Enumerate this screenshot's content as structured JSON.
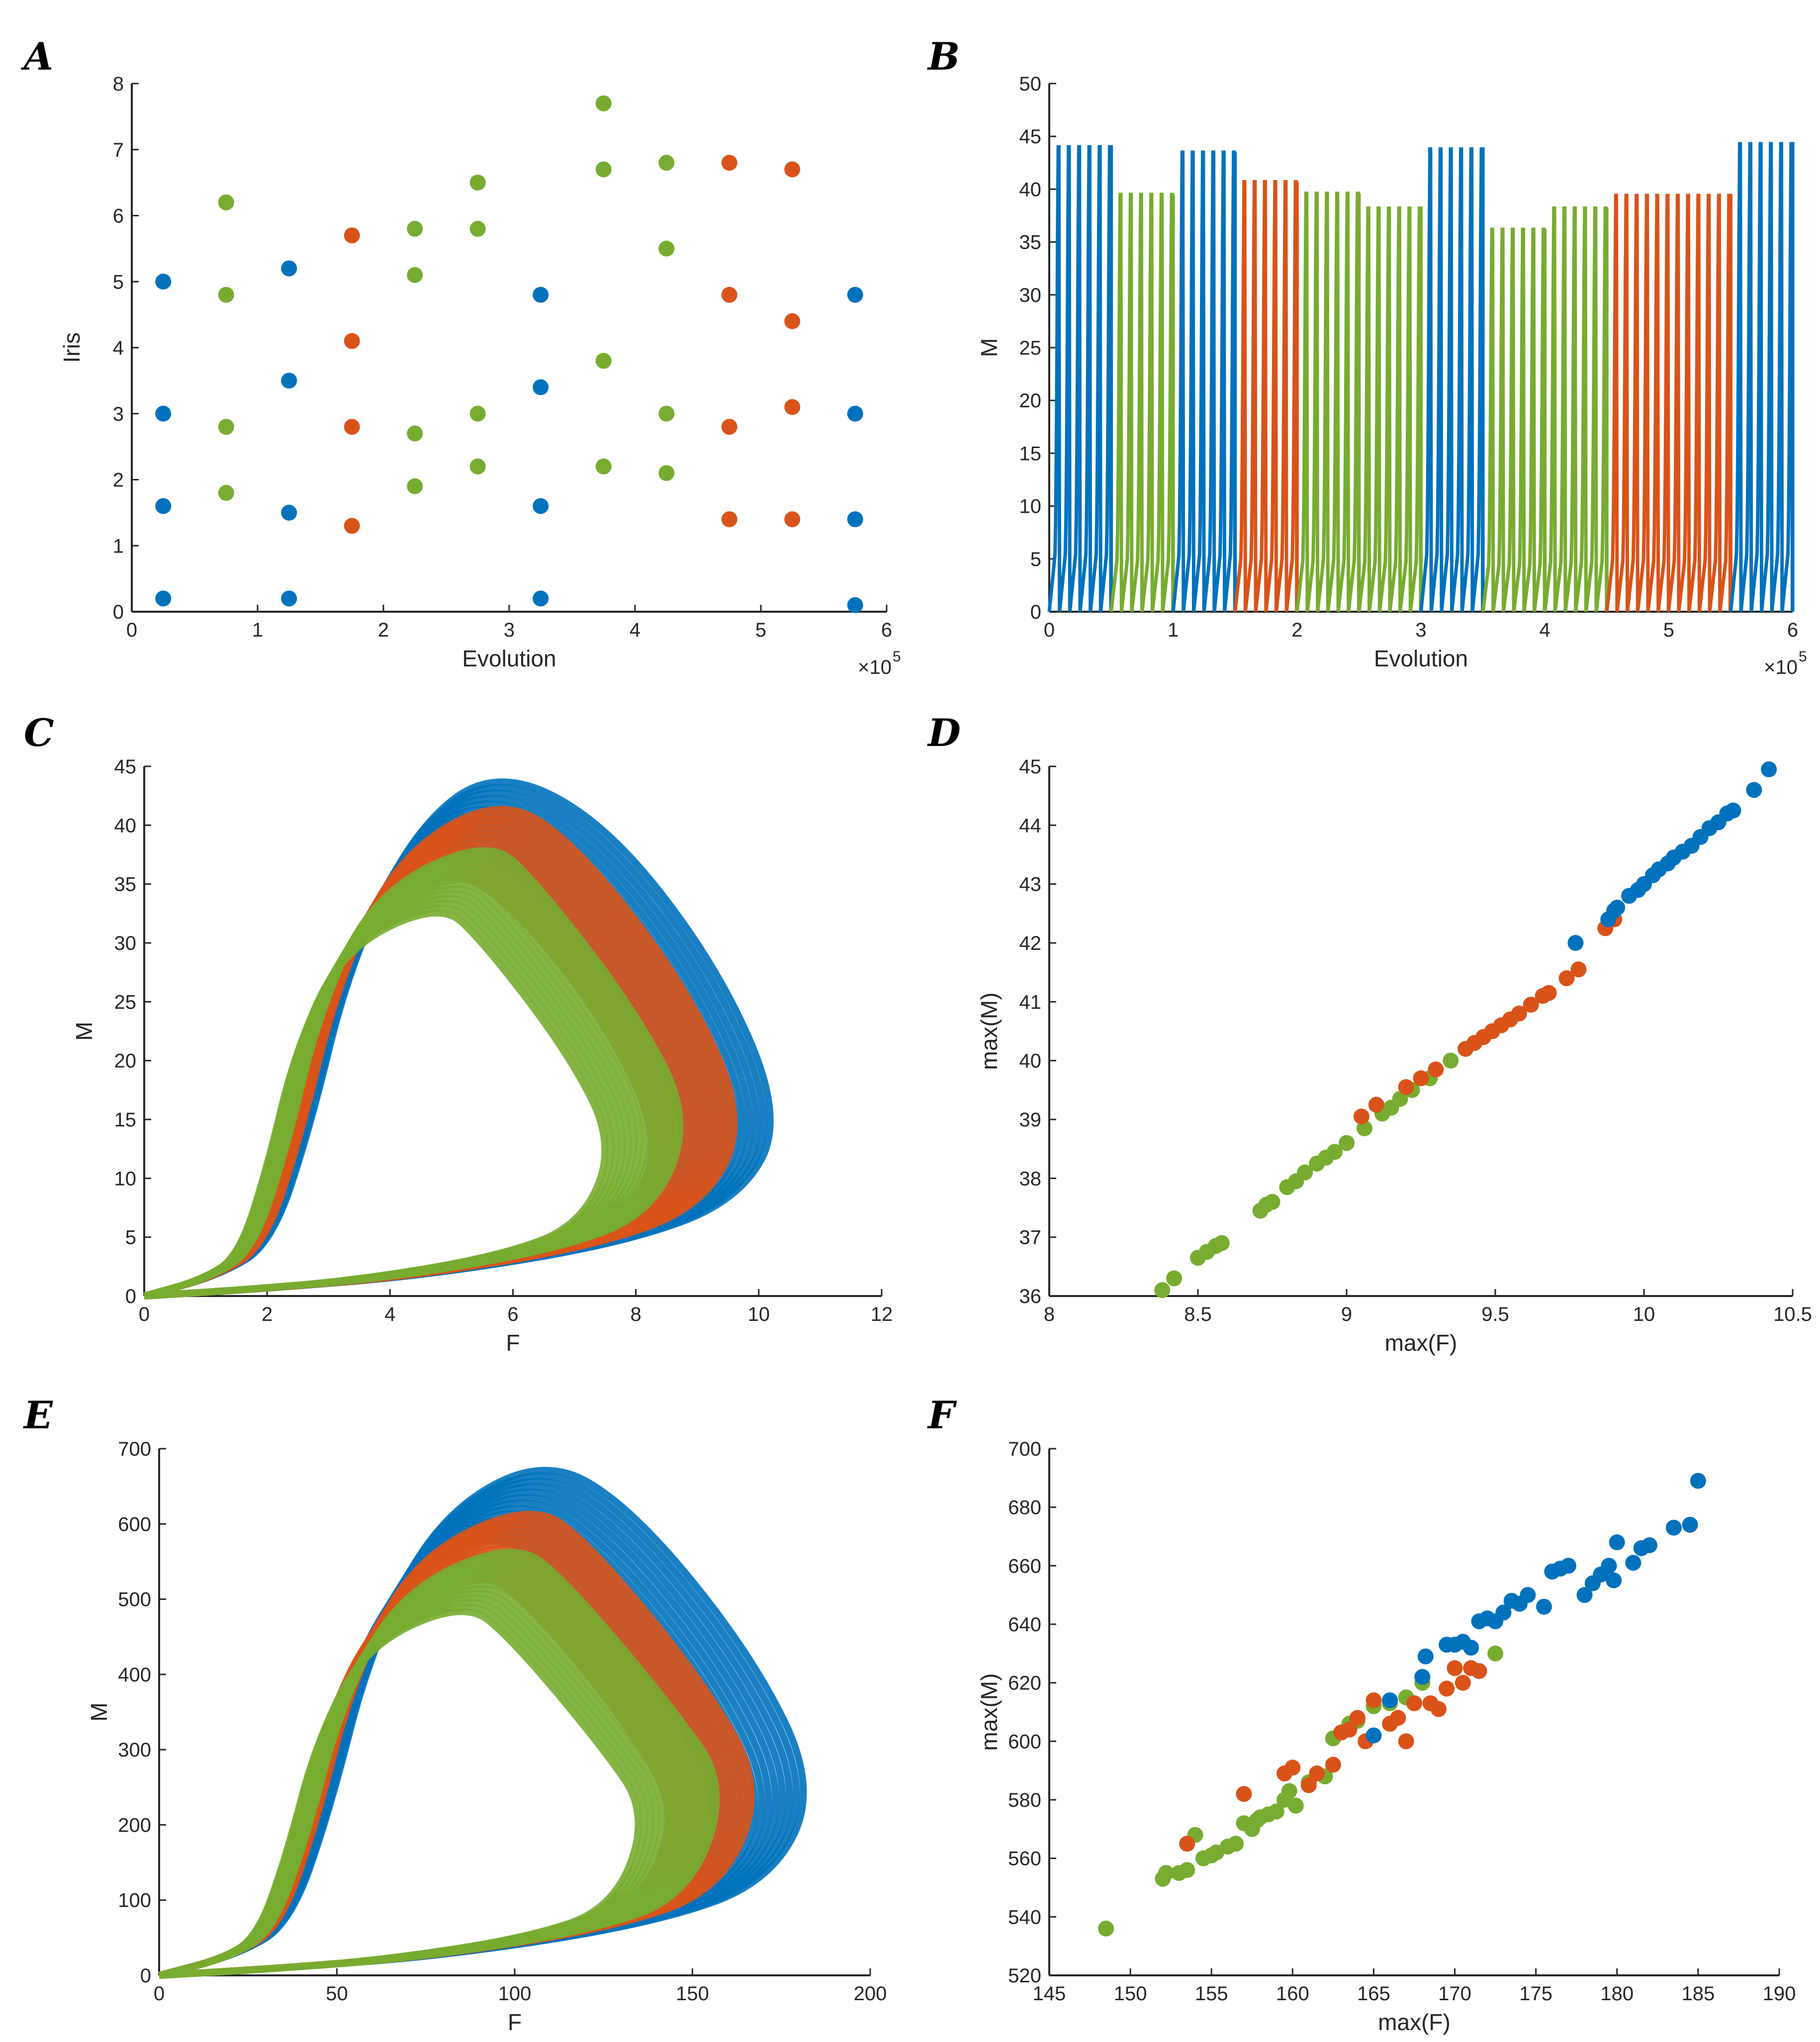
{
  "colors": {
    "blue": "#0072BD",
    "orange": "#D95319",
    "green": "#77AC30"
  },
  "panels": {
    "A": {
      "label": "A"
    },
    "B": {
      "label": "B"
    },
    "C": {
      "label": "C"
    },
    "D": {
      "label": "D"
    },
    "E": {
      "label": "E"
    },
    "F": {
      "label": "F"
    }
  },
  "chart_data": [
    {
      "id": "A",
      "type": "scatter",
      "xlabel": "Evolution",
      "ylabel": "Iris",
      "xlim": [
        0,
        6
      ],
      "ylim": [
        0,
        8
      ],
      "xticks": [
        0,
        1,
        2,
        3,
        4,
        5,
        6
      ],
      "yticks": [
        0,
        1,
        2,
        3,
        4,
        5,
        6,
        7,
        8
      ],
      "xmultiplier": "×10",
      "xmultiplier_exp": "5",
      "series": [
        {
          "name": "blue",
          "color": "#0072BD",
          "points": [
            [
              0.25,
              5.0
            ],
            [
              0.25,
              3.0
            ],
            [
              0.25,
              1.6
            ],
            [
              0.25,
              0.2
            ],
            [
              1.25,
              5.2
            ],
            [
              1.25,
              3.5
            ],
            [
              1.25,
              1.5
            ],
            [
              1.25,
              0.2
            ],
            [
              3.25,
              4.8
            ],
            [
              3.25,
              3.4
            ],
            [
              3.25,
              1.6
            ],
            [
              3.25,
              0.2
            ],
            [
              5.75,
              4.8
            ],
            [
              5.75,
              3.0
            ],
            [
              5.75,
              1.4
            ],
            [
              5.75,
              0.1
            ]
          ]
        },
        {
          "name": "orange",
          "color": "#D95319",
          "points": [
            [
              1.75,
              5.7
            ],
            [
              1.75,
              4.1
            ],
            [
              1.75,
              2.8
            ],
            [
              1.75,
              1.3
            ],
            [
              4.75,
              6.8
            ],
            [
              4.75,
              4.8
            ],
            [
              4.75,
              2.8
            ],
            [
              4.75,
              1.4
            ],
            [
              5.25,
              6.7
            ],
            [
              5.25,
              4.4
            ],
            [
              5.25,
              3.1
            ],
            [
              5.25,
              1.4
            ]
          ]
        },
        {
          "name": "green",
          "color": "#77AC30",
          "points": [
            [
              0.75,
              6.2
            ],
            [
              0.75,
              4.8
            ],
            [
              0.75,
              2.8
            ],
            [
              0.75,
              1.8
            ],
            [
              2.25,
              5.8
            ],
            [
              2.25,
              5.1
            ],
            [
              2.25,
              2.7
            ],
            [
              2.25,
              1.9
            ],
            [
              2.75,
              6.5
            ],
            [
              2.75,
              5.8
            ],
            [
              2.75,
              3.0
            ],
            [
              2.75,
              2.2
            ],
            [
              3.75,
              7.7
            ],
            [
              3.75,
              6.7
            ],
            [
              3.75,
              3.8
            ],
            [
              3.75,
              2.2
            ],
            [
              4.25,
              6.8
            ],
            [
              4.25,
              5.5
            ],
            [
              4.25,
              3.0
            ],
            [
              4.25,
              2.1
            ]
          ]
        }
      ]
    },
    {
      "id": "B",
      "type": "line",
      "xlabel": "Evolution",
      "ylabel": "M",
      "xlim": [
        0,
        6
      ],
      "ylim": [
        0,
        50
      ],
      "xticks": [
        0,
        1,
        2,
        3,
        4,
        5,
        6
      ],
      "yticks": [
        0,
        5,
        10,
        15,
        20,
        25,
        30,
        35,
        40,
        45,
        50
      ],
      "xmultiplier": "×10",
      "xmultiplier_exp": "5",
      "segments": [
        {
          "color": "#0072BD",
          "x_start": 0.0,
          "x_end": 0.5,
          "peak": 44
        },
        {
          "color": "#77AC30",
          "x_start": 0.5,
          "x_end": 1.0,
          "peak": 39.5
        },
        {
          "color": "#0072BD",
          "x_start": 1.0,
          "x_end": 1.5,
          "peak": 43.5
        },
        {
          "color": "#D95319",
          "x_start": 1.5,
          "x_end": 2.0,
          "peak": 40.7
        },
        {
          "color": "#77AC30",
          "x_start": 2.0,
          "x_end": 2.5,
          "peak": 39.6
        },
        {
          "color": "#77AC30",
          "x_start": 2.5,
          "x_end": 3.0,
          "peak": 38.2
        },
        {
          "color": "#0072BD",
          "x_start": 3.0,
          "x_end": 3.5,
          "peak": 43.8
        },
        {
          "color": "#77AC30",
          "x_start": 3.5,
          "x_end": 4.0,
          "peak": 36.2
        },
        {
          "color": "#77AC30",
          "x_start": 4.0,
          "x_end": 4.5,
          "peak": 38.2
        },
        {
          "color": "#D95319",
          "x_start": 4.5,
          "x_end": 5.5,
          "peak": 39.4
        },
        {
          "color": "#0072BD",
          "x_start": 5.5,
          "x_end": 6.0,
          "peak": 44.3
        }
      ]
    },
    {
      "id": "C",
      "type": "line",
      "xlabel": "F",
      "ylabel": "M",
      "xlim": [
        0,
        12
      ],
      "ylim": [
        0,
        45
      ],
      "xticks": [
        0,
        2,
        4,
        6,
        8,
        10,
        12
      ],
      "yticks": [
        0,
        5,
        10,
        15,
        20,
        25,
        30,
        35,
        40,
        45
      ],
      "series": [
        {
          "name": "blue",
          "color": "#0072BD",
          "max_F": 10.4,
          "max_M": 44.9,
          "peak_F": 5.7,
          "turn_M": 15
        },
        {
          "name": "orange",
          "color": "#D95319",
          "max_F": 9.8,
          "max_M": 42.5,
          "peak_F": 5.8,
          "turn_M": 15
        },
        {
          "name": "green",
          "color": "#77AC30",
          "max_F": 8.9,
          "max_M": 38.9,
          "peak_F": 5.6,
          "turn_M": 15
        }
      ]
    },
    {
      "id": "D",
      "type": "scatter",
      "xlabel": "max(F)",
      "ylabel": "max(M)",
      "xlim": [
        8,
        10.5
      ],
      "ylim": [
        36,
        45
      ],
      "xticks": [
        8,
        8.5,
        9,
        9.5,
        10,
        10.5
      ],
      "yticks": [
        36,
        37,
        38,
        39,
        40,
        41,
        42,
        43,
        44,
        45
      ],
      "series": [
        {
          "name": "green",
          "color": "#77AC30",
          "points": [
            [
              8.38,
              36.1
            ],
            [
              8.42,
              36.3
            ],
            [
              8.5,
              36.65
            ],
            [
              8.53,
              36.75
            ],
            [
              8.56,
              36.85
            ],
            [
              8.58,
              36.9
            ],
            [
              8.71,
              37.45
            ],
            [
              8.73,
              37.55
            ],
            [
              8.75,
              37.6
            ],
            [
              8.8,
              37.85
            ],
            [
              8.83,
              37.95
            ],
            [
              8.86,
              38.1
            ],
            [
              8.9,
              38.25
            ],
            [
              8.93,
              38.35
            ],
            [
              8.96,
              38.45
            ],
            [
              9.0,
              38.6
            ],
            [
              9.06,
              38.85
            ],
            [
              9.12,
              39.1
            ],
            [
              9.15,
              39.2
            ],
            [
              9.18,
              39.35
            ],
            [
              9.22,
              39.5
            ],
            [
              9.28,
              39.7
            ],
            [
              9.35,
              40.0
            ]
          ]
        },
        {
          "name": "orange",
          "color": "#D95319",
          "points": [
            [
              9.05,
              39.05
            ],
            [
              9.1,
              39.25
            ],
            [
              9.2,
              39.55
            ],
            [
              9.25,
              39.7
            ],
            [
              9.3,
              39.85
            ],
            [
              9.4,
              40.2
            ],
            [
              9.43,
              40.3
            ],
            [
              9.46,
              40.4
            ],
            [
              9.49,
              40.5
            ],
            [
              9.52,
              40.6
            ],
            [
              9.55,
              40.7
            ],
            [
              9.58,
              40.8
            ],
            [
              9.62,
              40.95
            ],
            [
              9.66,
              41.1
            ],
            [
              9.68,
              41.15
            ],
            [
              9.74,
              41.4
            ],
            [
              9.78,
              41.55
            ],
            [
              9.87,
              42.25
            ],
            [
              9.9,
              42.4
            ]
          ]
        },
        {
          "name": "blue",
          "color": "#0072BD",
          "points": [
            [
              9.77,
              42.0
            ],
            [
              9.88,
              42.4
            ],
            [
              9.9,
              42.55
            ],
            [
              9.91,
              42.6
            ],
            [
              9.95,
              42.8
            ],
            [
              9.98,
              42.9
            ],
            [
              10.0,
              43.0
            ],
            [
              10.03,
              43.15
            ],
            [
              10.05,
              43.25
            ],
            [
              10.08,
              43.35
            ],
            [
              10.1,
              43.45
            ],
            [
              10.13,
              43.55
            ],
            [
              10.16,
              43.65
            ],
            [
              10.19,
              43.8
            ],
            [
              10.22,
              43.95
            ],
            [
              10.25,
              44.05
            ],
            [
              10.28,
              44.2
            ],
            [
              10.3,
              44.25
            ],
            [
              10.37,
              44.6
            ],
            [
              10.42,
              44.95
            ]
          ]
        }
      ]
    },
    {
      "id": "E",
      "type": "line",
      "xlabel": "F",
      "ylabel": "M",
      "xlim": [
        0,
        200
      ],
      "ylim": [
        0,
        700
      ],
      "xticks": [
        0,
        50,
        100,
        150,
        200
      ],
      "yticks": [
        0,
        100,
        200,
        300,
        400,
        500,
        600,
        700
      ],
      "series": [
        {
          "name": "blue",
          "color": "#0072BD",
          "max_F": 185,
          "max_M": 690,
          "peak_F": 108,
          "turn_M": 250
        },
        {
          "name": "orange",
          "color": "#D95319",
          "max_F": 170,
          "max_M": 630,
          "peak_F": 105,
          "turn_M": 250
        },
        {
          "name": "green",
          "color": "#77AC30",
          "max_F": 160,
          "max_M": 578,
          "peak_F": 100,
          "turn_M": 250
        }
      ]
    },
    {
      "id": "F",
      "type": "scatter",
      "xlabel": "max(F)",
      "ylabel": "max(M)",
      "xlim": [
        145,
        190
      ],
      "ylim": [
        520,
        700
      ],
      "xticks": [
        145,
        150,
        155,
        160,
        165,
        170,
        175,
        180,
        185,
        190
      ],
      "yticks": [
        520,
        540,
        560,
        580,
        600,
        620,
        640,
        660,
        680,
        700
      ],
      "series": [
        {
          "name": "green",
          "color": "#77AC30",
          "points": [
            [
              148.5,
              536
            ],
            [
              152,
              553
            ],
            [
              152.2,
              555
            ],
            [
              153,
              555
            ],
            [
              153.5,
              556
            ],
            [
              154,
              568
            ],
            [
              154.5,
              560
            ],
            [
              155,
              561
            ],
            [
              155.3,
              562
            ],
            [
              156,
              564
            ],
            [
              156.5,
              565
            ],
            [
              157,
              572
            ],
            [
              157.5,
              570
            ],
            [
              157.8,
              573
            ],
            [
              158,
              574
            ],
            [
              158.5,
              575
            ],
            [
              159,
              576
            ],
            [
              159.5,
              580
            ],
            [
              159.8,
              583
            ],
            [
              160.2,
              578
            ],
            [
              161,
              586
            ],
            [
              162,
              588
            ],
            [
              162.5,
              601
            ],
            [
              163.5,
              606
            ],
            [
              164,
              607
            ],
            [
              165,
              612
            ],
            [
              166,
              613
            ],
            [
              167,
              615
            ],
            [
              168,
              620
            ],
            [
              172.5,
              630
            ]
          ]
        },
        {
          "name": "orange",
          "color": "#D95319",
          "points": [
            [
              153.5,
              565
            ],
            [
              157,
              582
            ],
            [
              159.5,
              589
            ],
            [
              160,
              591
            ],
            [
              161,
              585
            ],
            [
              161.5,
              589
            ],
            [
              162.5,
              592
            ],
            [
              163,
              603
            ],
            [
              163.5,
              604
            ],
            [
              164,
              608
            ],
            [
              164.5,
              600
            ],
            [
              165,
              614
            ],
            [
              166,
              606
            ],
            [
              166.5,
              608
            ],
            [
              167,
              600
            ],
            [
              167.5,
              613
            ],
            [
              168.5,
              613
            ],
            [
              169,
              611
            ],
            [
              169.5,
              618
            ],
            [
              170,
              625
            ],
            [
              170.5,
              620
            ],
            [
              171,
              625
            ],
            [
              171.5,
              624
            ]
          ]
        },
        {
          "name": "blue",
          "color": "#0072BD",
          "points": [
            [
              165,
              602
            ],
            [
              166,
              614
            ],
            [
              168,
              622
            ],
            [
              168.2,
              629
            ],
            [
              169.5,
              633
            ],
            [
              170,
              633
            ],
            [
              170.5,
              634
            ],
            [
              171,
              632
            ],
            [
              171.5,
              641
            ],
            [
              172,
              642
            ],
            [
              172.5,
              641
            ],
            [
              173,
              644
            ],
            [
              173.5,
              648
            ],
            [
              174,
              647
            ],
            [
              174.5,
              650
            ],
            [
              175.5,
              646
            ],
            [
              176,
              658
            ],
            [
              176.5,
              659
            ],
            [
              177,
              660
            ],
            [
              178,
              650
            ],
            [
              178.5,
              654
            ],
            [
              179,
              657
            ],
            [
              179.5,
              660
            ],
            [
              179.8,
              655
            ],
            [
              180,
              668
            ],
            [
              181,
              661
            ],
            [
              181.5,
              666
            ],
            [
              182,
              667
            ],
            [
              183.5,
              673
            ],
            [
              184.5,
              674
            ],
            [
              185,
              689
            ]
          ]
        }
      ]
    }
  ]
}
